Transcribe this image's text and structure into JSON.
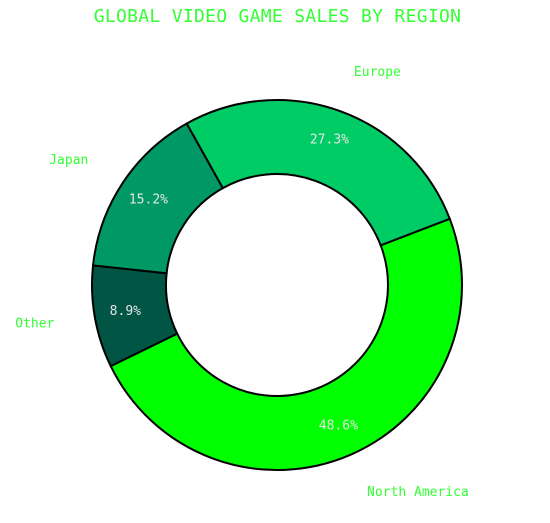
{
  "chart_data": {
    "type": "pie",
    "style": "donut",
    "title": "GLOBAL VIDEO GAME SALES BY REGION",
    "categories": [
      "North America",
      "Europe",
      "Japan",
      "Other"
    ],
    "values": [
      48.6,
      27.3,
      15.2,
      8.9
    ],
    "value_labels": [
      "48.6%",
      "27.3%",
      "15.2%",
      "8.9%"
    ],
    "unit": "%",
    "start_angle_deg": 206,
    "direction": "counterclockwise",
    "colors": {
      "North America": "#00ff00",
      "Europe": "#00cc66",
      "Japan": "#009966",
      "Other": "#005544"
    },
    "label_color": "#33ff33",
    "title_color": "#33ff33",
    "value_label_color": "#e6e6e6",
    "edge_color": "#000000",
    "legend": "none"
  }
}
